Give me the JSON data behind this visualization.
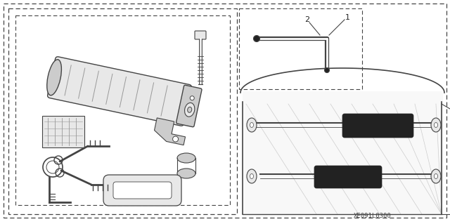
{
  "bg_color": "#ffffff",
  "line_color": "#444444",
  "dark_color": "#222222",
  "gray_light": "#e8e8e8",
  "gray_mid": "#cccccc",
  "gray_dark": "#999999",
  "part_code": "XE091L0300",
  "label1": "1",
  "label2": "2",
  "fig_w": 6.4,
  "fig_h": 3.19,
  "dpi": 100
}
